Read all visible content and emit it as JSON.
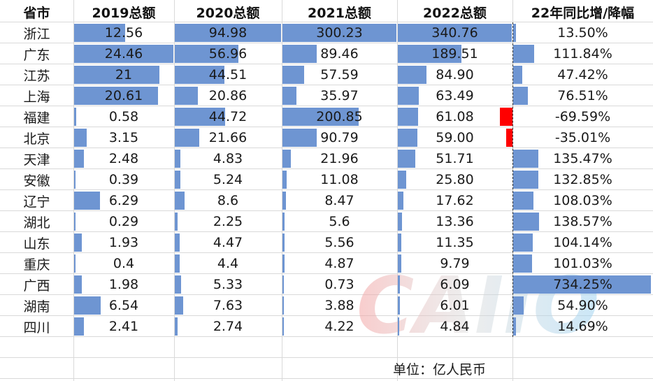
{
  "headers": [
    "省市",
    "2019总额",
    "2020总额",
    "2021总额",
    "2022总额",
    "22年同比增/降幅"
  ],
  "rows": [
    {
      "province": "浙江",
      "y2019": "12.56",
      "y2020": "94.98",
      "y2021": "300.23",
      "y2022": "340.76",
      "yoy": "13.50%",
      "v2019": 12.56,
      "v2020": 94.98,
      "v2021": 300.23,
      "v2022": 340.76,
      "vyoy": 13.5
    },
    {
      "province": "广东",
      "y2019": "24.46",
      "y2020": "56.96",
      "y2021": "89.46",
      "y2022": "189.51",
      "yoy": "111.84%",
      "v2019": 24.46,
      "v2020": 56.96,
      "v2021": 89.46,
      "v2022": 189.51,
      "vyoy": 111.84
    },
    {
      "province": "江苏",
      "y2019": "21",
      "y2020": "44.51",
      "y2021": "57.59",
      "y2022": "84.90",
      "yoy": "47.42%",
      "v2019": 21,
      "v2020": 44.51,
      "v2021": 57.59,
      "v2022": 84.9,
      "vyoy": 47.42
    },
    {
      "province": "上海",
      "y2019": "20.61",
      "y2020": "20.86",
      "y2021": "35.97",
      "y2022": "63.49",
      "yoy": "76.51%",
      "v2019": 20.61,
      "v2020": 20.86,
      "v2021": 35.97,
      "v2022": 63.49,
      "vyoy": 76.51
    },
    {
      "province": "福建",
      "y2019": "0.58",
      "y2020": "44.72",
      "y2021": "200.85",
      "y2022": "61.08",
      "yoy": "-69.59%",
      "v2019": 0.58,
      "v2020": 44.72,
      "v2021": 200.85,
      "v2022": 61.08,
      "vyoy": -69.59
    },
    {
      "province": "北京",
      "y2019": "3.15",
      "y2020": "21.66",
      "y2021": "90.79",
      "y2022": "59.00",
      "yoy": "-35.01%",
      "v2019": 3.15,
      "v2020": 21.66,
      "v2021": 90.79,
      "v2022": 59.0,
      "vyoy": -35.01
    },
    {
      "province": "天津",
      "y2019": "2.48",
      "y2020": "4.83",
      "y2021": "21.96",
      "y2022": "51.71",
      "yoy": "135.47%",
      "v2019": 2.48,
      "v2020": 4.83,
      "v2021": 21.96,
      "v2022": 51.71,
      "vyoy": 135.47
    },
    {
      "province": "安徽",
      "y2019": "0.39",
      "y2020": "5.24",
      "y2021": "11.08",
      "y2022": "25.80",
      "yoy": "132.85%",
      "v2019": 0.39,
      "v2020": 5.24,
      "v2021": 11.08,
      "v2022": 25.8,
      "vyoy": 132.85
    },
    {
      "province": "辽宁",
      "y2019": "6.29",
      "y2020": "8.6",
      "y2021": "8.47",
      "y2022": "17.62",
      "yoy": "108.03%",
      "v2019": 6.29,
      "v2020": 8.6,
      "v2021": 8.47,
      "v2022": 17.62,
      "vyoy": 108.03
    },
    {
      "province": "湖北",
      "y2019": "0.29",
      "y2020": "2.25",
      "y2021": "5.6",
      "y2022": "13.36",
      "yoy": "138.57%",
      "v2019": 0.29,
      "v2020": 2.25,
      "v2021": 5.6,
      "v2022": 13.36,
      "vyoy": 138.57
    },
    {
      "province": "山东",
      "y2019": "1.93",
      "y2020": "4.47",
      "y2021": "5.56",
      "y2022": "11.35",
      "yoy": "104.14%",
      "v2019": 1.93,
      "v2020": 4.47,
      "v2021": 5.56,
      "v2022": 11.35,
      "vyoy": 104.14
    },
    {
      "province": "重庆",
      "y2019": "0.4",
      "y2020": "4.4",
      "y2021": "4.87",
      "y2022": "9.79",
      "yoy": "101.03%",
      "v2019": 0.4,
      "v2020": 4.4,
      "v2021": 4.87,
      "v2022": 9.79,
      "vyoy": 101.03
    },
    {
      "province": "广西",
      "y2019": "1.98",
      "y2020": "5.33",
      "y2021": "0.73",
      "y2022": "6.09",
      "yoy": "734.25%",
      "v2019": 1.98,
      "v2020": 5.33,
      "v2021": 0.73,
      "v2022": 6.09,
      "vyoy": 734.25
    },
    {
      "province": "湖南",
      "y2019": "6.54",
      "y2020": "7.63",
      "y2021": "3.88",
      "y2022": "6.01",
      "yoy": "54.90%",
      "v2019": 6.54,
      "v2020": 7.63,
      "v2021": 3.88,
      "v2022": 6.01,
      "vyoy": 54.9
    },
    {
      "province": "四川",
      "y2019": "2.41",
      "y2020": "2.74",
      "y2021": "4.22",
      "y2022": "4.84",
      "yoy": "14.69%",
      "v2019": 2.41,
      "v2020": 2.74,
      "v2021": 4.22,
      "v2022": 4.84,
      "vyoy": 14.69
    }
  ],
  "unit_note": "单位：亿人民币",
  "watermark": "CAIIO",
  "colors": {
    "positive_bar": "#6e95d2",
    "negative_bar": "#ff0000",
    "gridline": "#d9d9d9"
  }
}
